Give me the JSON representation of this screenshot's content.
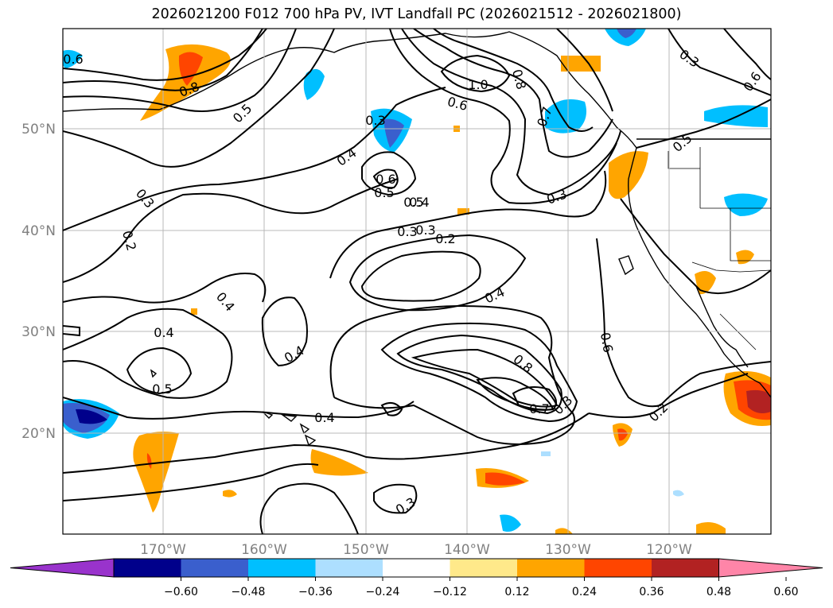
{
  "title": "2026021200 F012 700 hPa PV, IVT Landfall PC (2026021512 - 2026021800)",
  "map": {
    "latitude_labels": [
      "50°N",
      "40°N",
      "30°N",
      "20°N"
    ],
    "longitude_labels": [
      "170°W",
      "160°W",
      "150°W",
      "140°W",
      "130°W",
      "120°W"
    ],
    "contour_labels": [
      "0.6",
      "0.8",
      "0.5",
      "0.3",
      "0.4",
      "0.6",
      "0.5",
      "0.4",
      "0.3",
      "0.2",
      "0.5",
      "1.0",
      "0.6",
      "0.8",
      "0.7",
      "0.3",
      "0.3",
      "0.6",
      "0.5",
      "0.3",
      "0.2",
      "0.4",
      "0.4",
      "0.4",
      "0.5",
      "0.4",
      "0.6",
      "0.8",
      "0.7",
      "0.3",
      "0.2",
      "0.4",
      "0.3",
      "0.5",
      "0.3"
    ],
    "contour_color": "#000000",
    "grid": true
  },
  "colorbar": {
    "ticks": [
      "−0.60",
      "−0.48",
      "−0.36",
      "−0.24",
      "−0.12",
      "0.12",
      "0.24",
      "0.36",
      "0.48",
      "0.60"
    ],
    "colors": [
      "#9933cc",
      "#00008b",
      "#3a5fcd",
      "#00bfff",
      "#addfff",
      "#ffffff",
      "#ffe98a",
      "#ffa500",
      "#ff4500",
      "#b22222",
      "#ff85a8"
    ],
    "extend": "both"
  }
}
